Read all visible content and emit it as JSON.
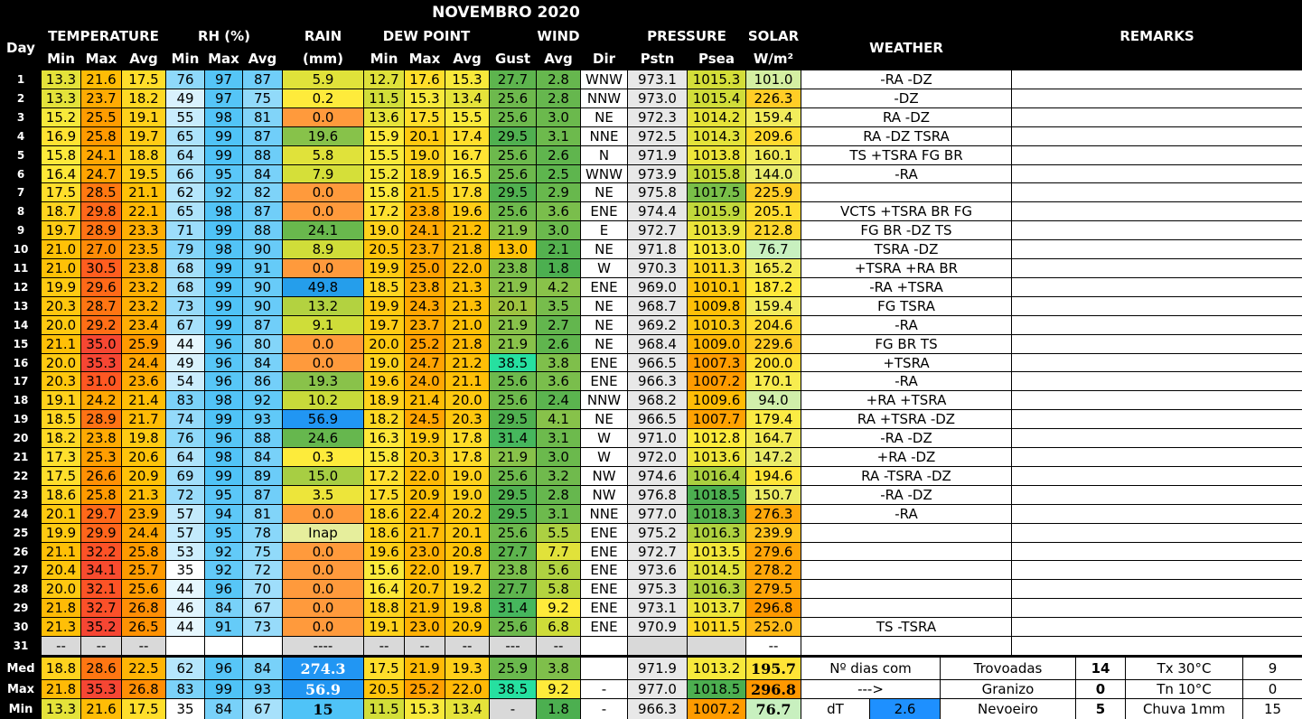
{
  "title": "NOVEMBRO 2020",
  "headers": {
    "day": "Day",
    "temperature": "TEMPERATURE",
    "rh": "RH (%)",
    "rain": "RAIN",
    "rain_unit": "(mm)",
    "dew_point": "DEW POINT",
    "wind": "WIND",
    "pressure": "PRESSURE",
    "solar": "SOLAR",
    "solar_unit": "W/m²",
    "weather": "WEATHER",
    "remarks": "REMARKS",
    "min": "Min",
    "max": "Max",
    "avg": "Avg",
    "gust": "Gust",
    "dir": "Dir",
    "pstn": "Pstn",
    "psea": "Psea"
  },
  "rows": [
    [
      "1",
      "13.3",
      "21.6",
      "17.5",
      "76",
      "97",
      "87",
      "5.9",
      "12.7",
      "17.6",
      "15.3",
      "27.7",
      "2.8",
      "WNW",
      "973.1",
      "1015.3",
      "101.0",
      "-RA -DZ"
    ],
    [
      "2",
      "13.3",
      "23.7",
      "18.2",
      "49",
      "97",
      "75",
      "0.2",
      "11.5",
      "15.3",
      "13.4",
      "25.6",
      "2.8",
      "NNW",
      "973.0",
      "1015.4",
      "226.3",
      "-DZ"
    ],
    [
      "3",
      "15.2",
      "25.5",
      "19.1",
      "55",
      "98",
      "81",
      "0.0",
      "13.6",
      "17.5",
      "15.5",
      "25.6",
      "3.0",
      "NE",
      "972.3",
      "1014.2",
      "159.4",
      "RA -DZ"
    ],
    [
      "4",
      "16.9",
      "25.8",
      "19.7",
      "65",
      "99",
      "87",
      "19.6",
      "15.9",
      "20.1",
      "17.4",
      "29.5",
      "3.1",
      "NNE",
      "972.5",
      "1014.3",
      "209.6",
      "RA -DZ TSRA"
    ],
    [
      "5",
      "15.8",
      "24.1",
      "18.8",
      "64",
      "99",
      "88",
      "5.8",
      "15.5",
      "19.0",
      "16.7",
      "25.6",
      "2.6",
      "N",
      "971.9",
      "1013.8",
      "160.1",
      "TS +TSRA FG BR"
    ],
    [
      "6",
      "16.4",
      "24.7",
      "19.5",
      "66",
      "95",
      "84",
      "7.9",
      "15.2",
      "18.9",
      "16.5",
      "25.6",
      "2.5",
      "WNW",
      "973.9",
      "1015.8",
      "144.0",
      "-RA"
    ],
    [
      "7",
      "17.5",
      "28.5",
      "21.1",
      "62",
      "92",
      "82",
      "0.0",
      "15.8",
      "21.5",
      "17.8",
      "29.5",
      "2.9",
      "NE",
      "975.8",
      "1017.5",
      "225.9",
      ""
    ],
    [
      "8",
      "18.7",
      "29.8",
      "22.1",
      "65",
      "98",
      "87",
      "0.0",
      "17.2",
      "23.8",
      "19.6",
      "25.6",
      "3.6",
      "ENE",
      "974.4",
      "1015.9",
      "205.1",
      "VCTS +TSRA BR FG"
    ],
    [
      "9",
      "19.7",
      "28.9",
      "23.3",
      "71",
      "99",
      "88",
      "24.1",
      "19.0",
      "24.1",
      "21.2",
      "21.9",
      "3.0",
      "E",
      "972.7",
      "1013.9",
      "212.8",
      "FG BR -DZ TS"
    ],
    [
      "10",
      "21.0",
      "27.0",
      "23.5",
      "79",
      "98",
      "90",
      "8.9",
      "20.5",
      "23.7",
      "21.8",
      "13.0",
      "2.1",
      "NE",
      "971.8",
      "1013.0",
      "76.7",
      "TSRA -DZ"
    ],
    [
      "11",
      "21.0",
      "30.5",
      "23.8",
      "68",
      "99",
      "91",
      "0.0",
      "19.9",
      "25.0",
      "22.0",
      "23.8",
      "1.8",
      "W",
      "970.3",
      "1011.3",
      "165.2",
      "+TSRA +RA BR"
    ],
    [
      "12",
      "19.9",
      "29.6",
      "23.2",
      "68",
      "99",
      "90",
      "49.8",
      "18.5",
      "23.8",
      "21.3",
      "21.9",
      "4.2",
      "ENE",
      "969.0",
      "1010.1",
      "187.2",
      "-RA +TSRA"
    ],
    [
      "13",
      "20.3",
      "28.7",
      "23.2",
      "73",
      "99",
      "90",
      "13.2",
      "19.9",
      "24.3",
      "21.3",
      "20.1",
      "3.5",
      "NE",
      "968.7",
      "1009.8",
      "159.4",
      "FG TSRA"
    ],
    [
      "14",
      "20.0",
      "29.2",
      "23.4",
      "67",
      "99",
      "87",
      "9.1",
      "19.7",
      "23.7",
      "21.0",
      "21.9",
      "2.7",
      "NE",
      "969.2",
      "1010.3",
      "204.6",
      "-RA"
    ],
    [
      "15",
      "21.1",
      "35.0",
      "25.9",
      "44",
      "96",
      "80",
      "0.0",
      "20.0",
      "25.2",
      "21.8",
      "21.9",
      "2.6",
      "NE",
      "968.4",
      "1009.0",
      "229.6",
      "FG BR TS"
    ],
    [
      "16",
      "20.0",
      "35.3",
      "24.4",
      "49",
      "96",
      "84",
      "0.0",
      "19.0",
      "24.7",
      "21.2",
      "38.5",
      "3.8",
      "ENE",
      "966.5",
      "1007.3",
      "200.0",
      "+TSRA"
    ],
    [
      "17",
      "20.3",
      "31.0",
      "23.6",
      "54",
      "96",
      "86",
      "19.3",
      "19.6",
      "24.0",
      "21.1",
      "25.6",
      "3.6",
      "ENE",
      "966.3",
      "1007.2",
      "170.1",
      "-RA"
    ],
    [
      "18",
      "19.1",
      "24.2",
      "21.4",
      "83",
      "98",
      "92",
      "10.2",
      "18.9",
      "21.4",
      "20.0",
      "25.6",
      "2.4",
      "NNW",
      "968.2",
      "1009.6",
      "94.0",
      "+RA +TSRA"
    ],
    [
      "19",
      "18.5",
      "28.9",
      "21.7",
      "74",
      "99",
      "93",
      "56.9",
      "18.2",
      "24.5",
      "20.3",
      "29.5",
      "4.1",
      "NE",
      "966.5",
      "1007.7",
      "179.4",
      "RA +TSRA -DZ"
    ],
    [
      "20",
      "18.2",
      "23.8",
      "19.8",
      "76",
      "96",
      "88",
      "24.6",
      "16.3",
      "19.9",
      "17.8",
      "31.4",
      "3.1",
      "W",
      "971.0",
      "1012.8",
      "164.7",
      "-RA -DZ"
    ],
    [
      "21",
      "17.3",
      "25.3",
      "20.6",
      "64",
      "98",
      "84",
      "0.3",
      "15.8",
      "20.3",
      "17.8",
      "21.9",
      "3.0",
      "W",
      "972.0",
      "1013.6",
      "147.2",
      "+RA -DZ"
    ],
    [
      "22",
      "17.5",
      "26.6",
      "20.9",
      "69",
      "99",
      "89",
      "15.0",
      "17.2",
      "22.0",
      "19.0",
      "25.6",
      "3.2",
      "NW",
      "974.6",
      "1016.4",
      "194.6",
      "RA -TSRA -DZ"
    ],
    [
      "23",
      "18.6",
      "25.8",
      "21.3",
      "72",
      "95",
      "87",
      "3.5",
      "17.5",
      "20.9",
      "19.0",
      "29.5",
      "2.8",
      "NW",
      "976.8",
      "1018.5",
      "150.7",
      "-RA -DZ"
    ],
    [
      "24",
      "20.1",
      "29.7",
      "23.9",
      "57",
      "94",
      "81",
      "0.0",
      "18.6",
      "22.4",
      "20.2",
      "29.5",
      "3.1",
      "NNE",
      "977.0",
      "1018.3",
      "276.3",
      "-RA"
    ],
    [
      "25",
      "19.9",
      "29.9",
      "24.4",
      "57",
      "95",
      "78",
      "Inap",
      "18.6",
      "21.7",
      "20.1",
      "25.6",
      "5.5",
      "ENE",
      "975.2",
      "1016.3",
      "239.9",
      ""
    ],
    [
      "26",
      "21.1",
      "32.2",
      "25.8",
      "53",
      "92",
      "75",
      "0.0",
      "19.6",
      "23.0",
      "20.8",
      "27.7",
      "7.7",
      "ENE",
      "972.7",
      "1013.5",
      "279.6",
      ""
    ],
    [
      "27",
      "20.4",
      "34.1",
      "25.7",
      "35",
      "92",
      "72",
      "0.0",
      "15.6",
      "22.0",
      "19.7",
      "23.8",
      "5.6",
      "ENE",
      "973.6",
      "1014.5",
      "278.2",
      ""
    ],
    [
      "28",
      "20.0",
      "32.1",
      "25.6",
      "44",
      "96",
      "70",
      "0.0",
      "16.4",
      "20.7",
      "19.2",
      "27.7",
      "5.8",
      "ENE",
      "975.3",
      "1016.3",
      "279.5",
      ""
    ],
    [
      "29",
      "21.8",
      "32.7",
      "26.8",
      "46",
      "84",
      "67",
      "0.0",
      "18.8",
      "21.9",
      "19.8",
      "31.4",
      "9.2",
      "ENE",
      "973.1",
      "1013.7",
      "296.8",
      ""
    ],
    [
      "30",
      "21.3",
      "35.2",
      "26.5",
      "44",
      "91",
      "73",
      "0.0",
      "19.1",
      "23.0",
      "20.9",
      "25.6",
      "6.8",
      "ENE",
      "970.9",
      "1011.5",
      "252.0",
      "TS -TSRA"
    ],
    [
      "31",
      "--",
      "--",
      "--",
      "",
      "",
      "",
      "----",
      "--",
      "--",
      "--",
      "---",
      "--",
      "",
      "",
      "",
      "--",
      ""
    ]
  ],
  "summary": {
    "med": [
      "Med",
      "18.8",
      "28.6",
      "22.5",
      "62",
      "96",
      "84",
      "274.3",
      "17.5",
      "21.9",
      "19.3",
      "25.9",
      "3.8",
      "",
      "971.9",
      "1013.2",
      "195.7"
    ],
    "max": [
      "Max",
      "21.8",
      "35.3",
      "26.8",
      "83",
      "99",
      "93",
      "56.9",
      "20.5",
      "25.2",
      "22.0",
      "38.5",
      "9.2",
      "-",
      "977.0",
      "1018.5",
      "296.8"
    ],
    "min": [
      "Min",
      "13.3",
      "21.6",
      "17.5",
      "35",
      "84",
      "67",
      "15",
      "11.5",
      "15.3",
      "13.4",
      "-",
      "1.8",
      "-",
      "966.3",
      "1007.2",
      "76.7"
    ]
  },
  "stats": {
    "ndias_label": "Nº dias com",
    "arrow": "--->",
    "dt_label": "dT",
    "dt_value": "2.6",
    "trovoadas_label": "Trovoadas",
    "trovoadas_value": "14",
    "granizo_label": "Granizo",
    "granizo_value": "0",
    "nevoeiro_label": "Nevoeiro",
    "nevoeiro_value": "5",
    "tx_label": "Tx 30°C",
    "tx_value": "9",
    "tn_label": "Tn 10°C",
    "tn_value": "0",
    "chuva_label": "Chuva 1mm",
    "chuva_value": "15"
  },
  "colors": {
    "temp_scale": [
      "#cddc39",
      "#ffeb3b",
      "#ffc107",
      "#ff9800",
      "#ff5722",
      "#f44336"
    ],
    "rh_low": "#ffffff",
    "rh_high": "#4fc3f7",
    "rain_zero": "#ff9a3c",
    "rain_scale": [
      "#ffeb3b",
      "#cddc39",
      "#8bc34a",
      "#4caf50",
      "#26e0a0",
      "#26a0e8",
      "#2196f3"
    ],
    "pressure_pstn": "#e8e8e8",
    "psea_high": "#4caf50",
    "psea_low": "#ff9800",
    "solar_scale": [
      "#c8f0c0",
      "#ffeb3b",
      "#ff9800"
    ],
    "dt_fill": "#1e90ff"
  }
}
